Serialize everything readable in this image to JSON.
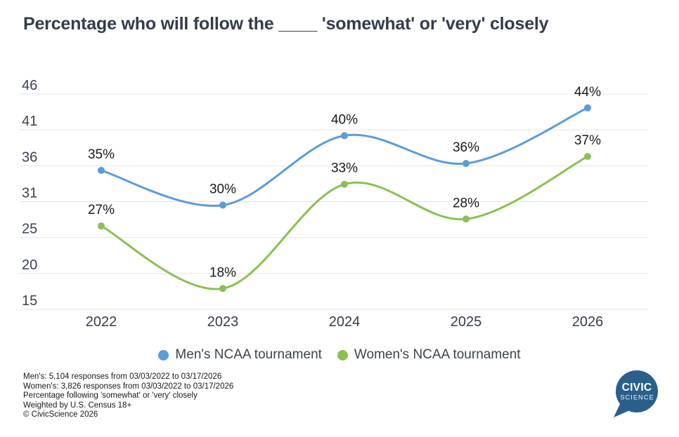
{
  "title": "Percentage who will follow the ____ 'somewhat' or 'very' closely",
  "chart_data": {
    "type": "line",
    "categories": [
      "2022",
      "2023",
      "2024",
      "2025",
      "2026"
    ],
    "series": [
      {
        "name": "Men's NCAA tournament",
        "color": "#5B9CDB",
        "values": [
          35,
          30,
          40,
          36,
          44
        ]
      },
      {
        "name": "Women's NCAA tournament",
        "color": "#8BC053",
        "values": [
          27,
          18,
          33,
          28,
          37
        ]
      }
    ],
    "value_suffix": "%",
    "y_ticks": [
      46,
      41,
      36,
      31,
      25,
      20,
      15
    ],
    "ylim": [
      15,
      46
    ],
    "xlabel": "",
    "ylabel": "",
    "grid": true,
    "legend_position": "bottom",
    "gridline_color": "#E2E4E7"
  },
  "footer": {
    "lines": [
      "Men's: 5,104 responses from 03/03/2022 to 03/17/2026",
      "Women's: 3,826 responses from 03/03/2022 to 03/17/2026",
      "Percentage following 'somewhat' or 'very' closely",
      "Weighted by U.S. Census 18+",
      "© CivicScience 2026"
    ]
  },
  "logo": {
    "text_top": "CIVIC",
    "text_bottom": "SCIENCE",
    "color": "#2A5F8C"
  }
}
